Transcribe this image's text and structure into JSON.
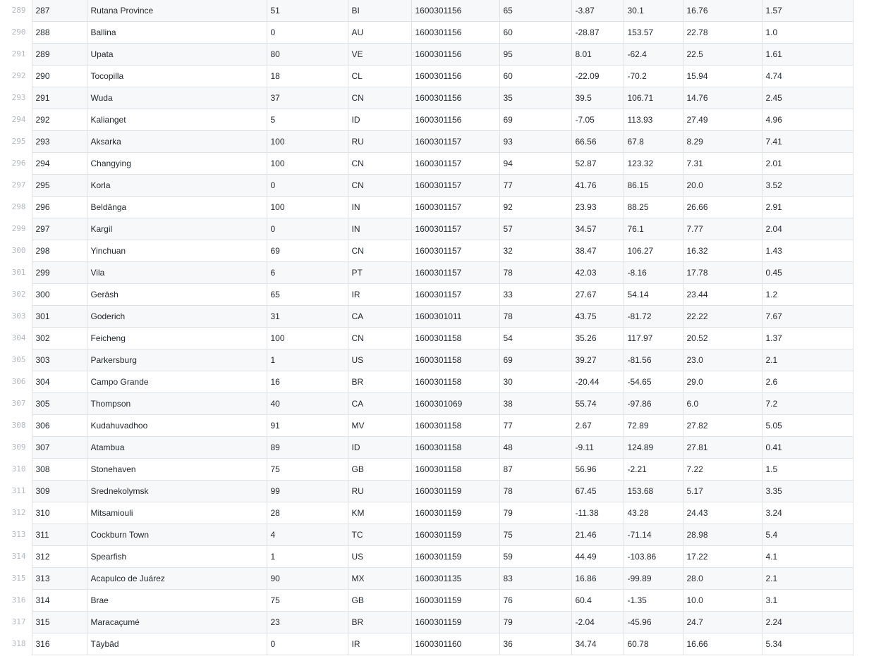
{
  "rows": [
    {
      "ln": "289",
      "cells": [
        "287",
        "Rutana Province",
        "51",
        "BI",
        "1600301156",
        "65",
        "-3.87",
        "30.1",
        "16.76",
        "1.57"
      ]
    },
    {
      "ln": "290",
      "cells": [
        "288",
        "Ballina",
        "0",
        "AU",
        "1600301156",
        "60",
        "-28.87",
        "153.57",
        "22.78",
        "1.0"
      ]
    },
    {
      "ln": "291",
      "cells": [
        "289",
        "Upata",
        "80",
        "VE",
        "1600301156",
        "95",
        "8.01",
        "-62.4",
        "22.5",
        "1.61"
      ]
    },
    {
      "ln": "292",
      "cells": [
        "290",
        "Tocopilla",
        "18",
        "CL",
        "1600301156",
        "60",
        "-22.09",
        "-70.2",
        "15.94",
        "4.74"
      ]
    },
    {
      "ln": "293",
      "cells": [
        "291",
        "Wuda",
        "37",
        "CN",
        "1600301156",
        "35",
        "39.5",
        "106.71",
        "14.76",
        "2.45"
      ]
    },
    {
      "ln": "294",
      "cells": [
        "292",
        "Kalianget",
        "5",
        "ID",
        "1600301156",
        "69",
        "-7.05",
        "113.93",
        "27.49",
        "4.96"
      ]
    },
    {
      "ln": "295",
      "cells": [
        "293",
        "Aksarka",
        "100",
        "RU",
        "1600301157",
        "93",
        "66.56",
        "67.8",
        "8.29",
        "7.41"
      ]
    },
    {
      "ln": "296",
      "cells": [
        "294",
        "Changying",
        "100",
        "CN",
        "1600301157",
        "94",
        "52.87",
        "123.32",
        "7.31",
        "2.01"
      ]
    },
    {
      "ln": "297",
      "cells": [
        "295",
        "Korla",
        "0",
        "CN",
        "1600301157",
        "77",
        "41.76",
        "86.15",
        "20.0",
        "3.52"
      ]
    },
    {
      "ln": "298",
      "cells": [
        "296",
        "Beldānga",
        "100",
        "IN",
        "1600301157",
        "92",
        "23.93",
        "88.25",
        "26.66",
        "2.91"
      ]
    },
    {
      "ln": "299",
      "cells": [
        "297",
        "Kargil",
        "0",
        "IN",
        "1600301157",
        "57",
        "34.57",
        "76.1",
        "7.77",
        "2.04"
      ]
    },
    {
      "ln": "300",
      "cells": [
        "298",
        "Yinchuan",
        "69",
        "CN",
        "1600301157",
        "32",
        "38.47",
        "106.27",
        "16.32",
        "1.43"
      ]
    },
    {
      "ln": "301",
      "cells": [
        "299",
        "Vila",
        "6",
        "PT",
        "1600301157",
        "78",
        "42.03",
        "-8.16",
        "17.78",
        "0.45"
      ]
    },
    {
      "ln": "302",
      "cells": [
        "300",
        "Gerāsh",
        "65",
        "IR",
        "1600301157",
        "33",
        "27.67",
        "54.14",
        "23.44",
        "1.2"
      ]
    },
    {
      "ln": "303",
      "cells": [
        "301",
        "Goderich",
        "31",
        "CA",
        "1600301011",
        "78",
        "43.75",
        "-81.72",
        "22.22",
        "7.67"
      ]
    },
    {
      "ln": "304",
      "cells": [
        "302",
        "Feicheng",
        "100",
        "CN",
        "1600301158",
        "54",
        "35.26",
        "117.97",
        "20.52",
        "1.37"
      ]
    },
    {
      "ln": "305",
      "cells": [
        "303",
        "Parkersburg",
        "1",
        "US",
        "1600301158",
        "69",
        "39.27",
        "-81.56",
        "23.0",
        "2.1"
      ]
    },
    {
      "ln": "306",
      "cells": [
        "304",
        "Campo Grande",
        "16",
        "BR",
        "1600301158",
        "30",
        "-20.44",
        "-54.65",
        "29.0",
        "2.6"
      ]
    },
    {
      "ln": "307",
      "cells": [
        "305",
        "Thompson",
        "40",
        "CA",
        "1600301069",
        "38",
        "55.74",
        "-97.86",
        "6.0",
        "7.2"
      ]
    },
    {
      "ln": "308",
      "cells": [
        "306",
        "Kudahuvadhoo",
        "91",
        "MV",
        "1600301158",
        "77",
        "2.67",
        "72.89",
        "27.82",
        "5.05"
      ]
    },
    {
      "ln": "309",
      "cells": [
        "307",
        "Atambua",
        "89",
        "ID",
        "1600301158",
        "48",
        "-9.11",
        "124.89",
        "27.81",
        "0.41"
      ]
    },
    {
      "ln": "310",
      "cells": [
        "308",
        "Stonehaven",
        "75",
        "GB",
        "1600301158",
        "87",
        "56.96",
        "-2.21",
        "7.22",
        "1.5"
      ]
    },
    {
      "ln": "311",
      "cells": [
        "309",
        "Srednekolymsk",
        "99",
        "RU",
        "1600301159",
        "78",
        "67.45",
        "153.68",
        "5.17",
        "3.35"
      ]
    },
    {
      "ln": "312",
      "cells": [
        "310",
        "Mitsamiouli",
        "28",
        "KM",
        "1600301159",
        "79",
        "-11.38",
        "43.28",
        "24.43",
        "3.24"
      ]
    },
    {
      "ln": "313",
      "cells": [
        "311",
        "Cockburn Town",
        "4",
        "TC",
        "1600301159",
        "75",
        "21.46",
        "-71.14",
        "28.98",
        "5.4"
      ]
    },
    {
      "ln": "314",
      "cells": [
        "312",
        "Spearfish",
        "1",
        "US",
        "1600301159",
        "59",
        "44.49",
        "-103.86",
        "17.22",
        "4.1"
      ]
    },
    {
      "ln": "315",
      "cells": [
        "313",
        "Acapulco de Juárez",
        "90",
        "MX",
        "1600301135",
        "83",
        "16.86",
        "-99.89",
        "28.0",
        "2.1"
      ]
    },
    {
      "ln": "316",
      "cells": [
        "314",
        "Brae",
        "75",
        "GB",
        "1600301159",
        "76",
        "60.4",
        "-1.35",
        "10.0",
        "3.1"
      ]
    },
    {
      "ln": "317",
      "cells": [
        "315",
        "Maracaçumé",
        "23",
        "BR",
        "1600301159",
        "79",
        "-2.04",
        "-45.96",
        "24.7",
        "2.24"
      ]
    },
    {
      "ln": "318",
      "cells": [
        "316",
        "Tāybād",
        "0",
        "IR",
        "1600301160",
        "36",
        "34.74",
        "60.78",
        "16.66",
        "5.34"
      ]
    }
  ]
}
